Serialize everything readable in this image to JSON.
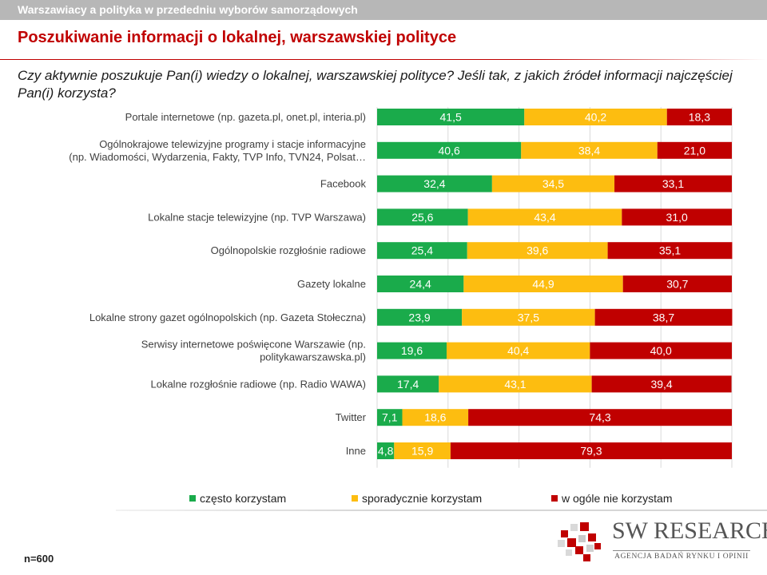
{
  "header": {
    "topbar_title": "Warszawiacy a polityka w przededniu wyborów samorządowych",
    "title": "Poszukiwanie informacji o lokalnej, warszawskiej polityce",
    "question": "Czy aktywnie poszukuje Pan(i) wiedzy o lokalnej, warszawskiej polityce? Jeśli tak, z jakich źródeł informacji najczęściej Pan(i) korzysta?"
  },
  "chart_data": {
    "type": "bar",
    "orientation": "horizontal",
    "stacked": "percent",
    "categories": [
      [
        "Portale internetowe (np. gazeta.pl, onet.pl, interia.pl)"
      ],
      [
        "Ogólnokrajowe telewizyjne programy i stacje informacyjne",
        "(np. Wiadomości, Wydarzenia, Fakty, TVP Info, TVN24, Polsat…"
      ],
      [
        "Facebook"
      ],
      [
        "Lokalne stacje telewizyjne (np. TVP Warszawa)"
      ],
      [
        "Ogólnopolskie rozgłośnie radiowe"
      ],
      [
        "Gazety lokalne"
      ],
      [
        "Lokalne strony gazet ogólnopolskich (np. Gazeta Stołeczna)"
      ],
      [
        "Serwisy internetowe poświęcone Warszawie (np.",
        "politykawarszawska.pl)"
      ],
      [
        "Lokalne rozgłośnie radiowe (np. Radio WAWA)"
      ],
      [
        "Twitter"
      ],
      [
        "Inne"
      ]
    ],
    "series": [
      {
        "name": "często korzystam",
        "color": "#1aab4b",
        "values": [
          41.5,
          40.6,
          32.4,
          25.6,
          25.4,
          24.4,
          23.9,
          19.6,
          17.4,
          7.1,
          4.8
        ],
        "labels": [
          "41,5",
          "40,6",
          "32,4",
          "25,6",
          "25,4",
          "24,4",
          "23,9",
          "19,6",
          "17,4",
          "7,1",
          "4,8"
        ]
      },
      {
        "name": "sporadycznie korzystam",
        "color": "#fdbd10",
        "values": [
          40.2,
          38.4,
          34.5,
          43.4,
          39.6,
          44.9,
          37.5,
          40.4,
          43.1,
          18.6,
          15.9
        ],
        "labels": [
          "40,2",
          "38,4",
          "34,5",
          "43,4",
          "39,6",
          "44,9",
          "37,5",
          "40,4",
          "43,1",
          "18,6",
          "15,9"
        ]
      },
      {
        "name": "w ogóle nie korzystam",
        "color": "#c00000",
        "values": [
          18.3,
          21.0,
          33.1,
          31.0,
          35.1,
          30.7,
          38.7,
          40.0,
          39.4,
          74.3,
          79.3
        ],
        "labels": [
          "18,3",
          "21,0",
          "33,1",
          "31,0",
          "35,1",
          "30,7",
          "38,7",
          "40,0",
          "39,4",
          "74,3",
          "79,3"
        ]
      }
    ],
    "xlim": [
      0,
      100
    ],
    "grid": true,
    "legend": "bottom"
  },
  "footer": {
    "sample": "n=600",
    "logo_name": "SW RESEARCH",
    "logo_tagline": "AGENCJA BADAŃ RYNKU I OPINII"
  }
}
